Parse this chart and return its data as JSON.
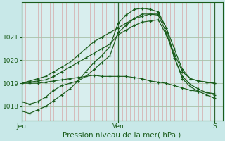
{
  "xlabel": "Pression niveau de la mer( hPa )",
  "bg_color": "#c8e8e8",
  "plot_bg_color": "#d8eeee",
  "line_color": "#1a5c1a",
  "xtick_labels": [
    "Jeu",
    "Ven",
    "S"
  ],
  "xtick_positions": [
    0,
    24,
    48
  ],
  "ytick_labels": [
    "1018",
    "1019",
    "1020",
    "1021"
  ],
  "ytick_positions": [
    1018,
    1019,
    1020,
    1021
  ],
  "ylim": [
    1017.4,
    1022.5
  ],
  "xlim": [
    0,
    50
  ],
  "minor_vgrid_step": 1,
  "minor_vgrid_color": "#d4a8a8",
  "major_hgrid_color": "#a8c0a8",
  "day_line_color": "#336633",
  "lines": [
    {
      "x": [
        0,
        2,
        4,
        6,
        8,
        10,
        12,
        14,
        16,
        18,
        20,
        22,
        24,
        26,
        28,
        30,
        32,
        34,
        36,
        38,
        40,
        42,
        44,
        46,
        48
      ],
      "y": [
        1019.0,
        1019.0,
        1019.0,
        1019.05,
        1019.1,
        1019.15,
        1019.2,
        1019.25,
        1019.3,
        1019.35,
        1019.3,
        1019.3,
        1019.3,
        1019.3,
        1019.25,
        1019.2,
        1019.1,
        1019.05,
        1019.0,
        1018.9,
        1018.8,
        1018.7,
        1018.65,
        1018.6,
        1018.55
      ]
    },
    {
      "x": [
        0,
        2,
        4,
        6,
        8,
        10,
        12,
        14,
        16,
        18,
        20,
        22,
        24,
        26,
        28,
        30,
        32,
        34,
        36,
        38,
        40,
        42,
        44,
        46,
        48
      ],
      "y": [
        1019.0,
        1019.05,
        1019.1,
        1019.15,
        1019.3,
        1019.5,
        1019.7,
        1019.9,
        1020.1,
        1020.3,
        1020.5,
        1020.7,
        1021.1,
        1021.3,
        1021.5,
        1021.65,
        1021.7,
        1021.75,
        1021.1,
        1020.3,
        1019.5,
        1019.2,
        1019.1,
        1019.05,
        1019.0
      ]
    },
    {
      "x": [
        0,
        2,
        4,
        6,
        8,
        10,
        12,
        14,
        16,
        18,
        20,
        22,
        24,
        26,
        28,
        30,
        32,
        34,
        36,
        38,
        40,
        42,
        44,
        46,
        48
      ],
      "y": [
        1019.0,
        1019.1,
        1019.2,
        1019.3,
        1019.5,
        1019.7,
        1019.9,
        1020.2,
        1020.5,
        1020.8,
        1021.0,
        1021.2,
        1021.4,
        1021.6,
        1021.8,
        1021.9,
        1022.0,
        1022.0,
        1021.4,
        1020.5,
        1019.6,
        1019.2,
        1019.1,
        1019.05,
        1019.0
      ]
    },
    {
      "x": [
        0,
        2,
        4,
        6,
        8,
        10,
        12,
        14,
        16,
        18,
        20,
        22,
        24,
        26,
        28,
        30,
        32,
        34,
        36,
        38,
        40,
        42,
        44,
        46,
        48
      ],
      "y": [
        1018.2,
        1018.1,
        1018.2,
        1018.4,
        1018.7,
        1018.9,
        1019.0,
        1019.1,
        1019.3,
        1019.6,
        1019.9,
        1020.2,
        1021.2,
        1021.5,
        1021.8,
        1022.0,
        1022.0,
        1021.95,
        1021.2,
        1020.1,
        1019.3,
        1018.95,
        1018.75,
        1018.6,
        1018.5
      ]
    },
    {
      "x": [
        0,
        2,
        4,
        6,
        8,
        10,
        12,
        14,
        16,
        18,
        20,
        22,
        24,
        26,
        28,
        30,
        32,
        34,
        36,
        38,
        40,
        42,
        44,
        46,
        48
      ],
      "y": [
        1017.8,
        1017.7,
        1017.85,
        1018.0,
        1018.25,
        1018.5,
        1018.75,
        1019.1,
        1019.5,
        1019.9,
        1020.2,
        1020.6,
        1021.6,
        1021.95,
        1022.2,
        1022.25,
        1022.2,
        1022.1,
        1021.4,
        1020.15,
        1019.2,
        1018.85,
        1018.65,
        1018.5,
        1018.35
      ]
    }
  ]
}
